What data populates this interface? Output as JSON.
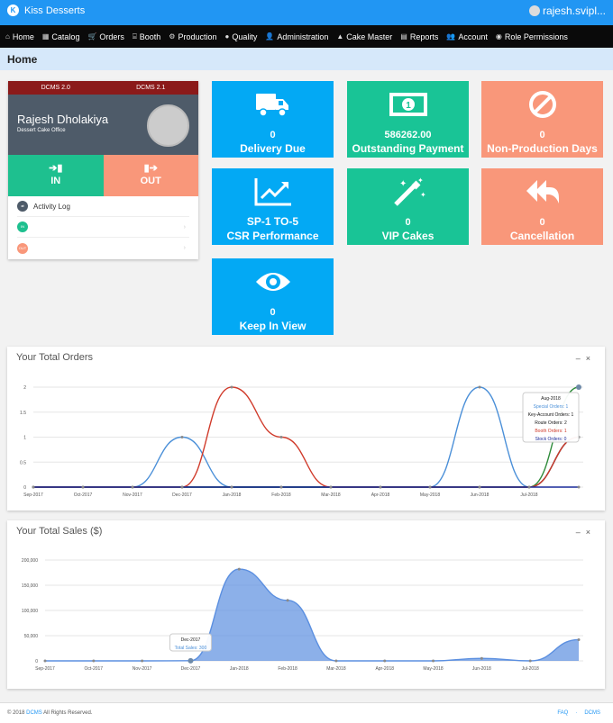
{
  "app": {
    "name": "Kiss Desserts",
    "user": "rajesh.svipl..."
  },
  "nav": [
    {
      "icon": "home-icon",
      "glyph": "⌂",
      "label": "Home"
    },
    {
      "icon": "catalog-icon",
      "glyph": "▦",
      "label": "Catalog"
    },
    {
      "icon": "orders-icon",
      "glyph": "🛒",
      "label": "Orders"
    },
    {
      "icon": "booth-icon",
      "glyph": "⌸",
      "label": "Booth"
    },
    {
      "icon": "production-icon",
      "glyph": "⚙",
      "label": "Production"
    },
    {
      "icon": "quality-icon",
      "glyph": "●",
      "label": "Quality"
    },
    {
      "icon": "administration-icon",
      "glyph": "👤",
      "label": "Administration"
    },
    {
      "icon": "cake-master-icon",
      "glyph": "▲",
      "label": "Cake Master"
    },
    {
      "icon": "reports-icon",
      "glyph": "▤",
      "label": "Reports"
    },
    {
      "icon": "account-icon",
      "glyph": "👥",
      "label": "Account"
    },
    {
      "icon": "role-permissions-icon",
      "glyph": "◉",
      "label": "Role Permissions"
    }
  ],
  "page": {
    "title": "Home"
  },
  "profile": {
    "tabs": [
      "DCMS 2.0",
      "DCMS 2.1"
    ],
    "name": "Rajesh Dholakiya",
    "office": "Dessert Cake Office",
    "in_label": "IN",
    "out_label": "OUT",
    "activity_log": "Activity Log",
    "rows": [
      {
        "badge": "IN",
        "color": "green"
      },
      {
        "badge": "OUT",
        "color": "salmon"
      }
    ]
  },
  "tiles": [
    {
      "id": "delivery-due",
      "icon": "truck-icon",
      "value": "0",
      "label": "Delivery Due",
      "color": "#03a9f4"
    },
    {
      "id": "outstanding-payment",
      "icon": "money-icon",
      "value": "586262.00",
      "label": "Outstanding Payment",
      "color": "#19c496"
    },
    {
      "id": "non-production-days",
      "icon": "ban-icon",
      "value": "0",
      "label": "Non-Production Days",
      "color": "#f9977a"
    },
    {
      "id": "csr-performance",
      "icon": "chart-line-icon",
      "value": "SP-1 TO-5",
      "label": "CSR Performance",
      "color": "#03a9f4"
    },
    {
      "id": "vip-cakes",
      "icon": "magic-wand-icon",
      "value": "0",
      "label": "VIP Cakes",
      "color": "#19c496"
    },
    {
      "id": "cancellation",
      "icon": "reply-all-icon",
      "value": "0",
      "label": "Cancellation",
      "color": "#f9977a"
    },
    {
      "id": "keep-in-view",
      "icon": "eye-icon",
      "value": "0",
      "label": "Keep In View",
      "color": "#03a9f4"
    }
  ],
  "panels": {
    "orders_title": "Your Total Orders",
    "sales_title": "Your Total Sales ($)",
    "minimize": "–",
    "close": "×"
  },
  "chart_data": [
    {
      "type": "line",
      "title": "Your Total Orders",
      "x": [
        "Sep-2017",
        "Oct-2017",
        "Nov-2017",
        "Dec-2017",
        "Jan-2018",
        "Feb-2018",
        "Mar-2018",
        "Apr-2018",
        "May-2018",
        "Jun-2018",
        "Jul-2018",
        "Aug-2018"
      ],
      "ylim": [
        0,
        2
      ],
      "yticks": [
        "0",
        "0.5",
        "1",
        "1.5",
        "2"
      ],
      "series": [
        {
          "name": "Special Orders",
          "color": "#4a8fd8",
          "values": [
            0,
            0,
            0,
            1,
            0,
            0,
            0,
            0,
            0,
            2,
            0,
            1
          ]
        },
        {
          "name": "Key-Account Orders",
          "color": "#111111",
          "values": [
            0,
            0,
            0,
            0,
            0,
            0,
            0,
            0,
            0,
            0,
            0,
            1
          ]
        },
        {
          "name": "Route Orders",
          "color": "#2e8b3a",
          "values": [
            0,
            0,
            0,
            0,
            0,
            0,
            0,
            0,
            0,
            0,
            0,
            2
          ]
        },
        {
          "name": "Booth Orders",
          "color": "#d03a2a",
          "values": [
            0,
            0,
            0,
            0,
            2,
            1,
            0,
            0,
            0,
            0,
            0,
            1
          ]
        },
        {
          "name": "Stock Orders",
          "color": "#1a2a9a",
          "values": [
            0,
            0,
            0,
            0,
            0,
            0,
            0,
            0,
            0,
            0,
            0,
            0
          ]
        }
      ],
      "tooltip": {
        "title": "Aug-2018",
        "lines": [
          {
            "text": "Special Orders: 1",
            "color": "#4a8fd8"
          },
          {
            "text": "Key-Account Orders: 1",
            "color": "#111111"
          },
          {
            "text": "Route Orders: 2",
            "color": "#111111"
          },
          {
            "text": "Booth Orders: 1",
            "color": "#d03a2a"
          },
          {
            "text": "Stock Orders: 0",
            "color": "#1a2a9a"
          }
        ]
      }
    },
    {
      "type": "area",
      "title": "Your Total Sales ($)",
      "x": [
        "Sep-2017",
        "Oct-2017",
        "Nov-2017",
        "Dec-2017",
        "Jan-2018",
        "Feb-2018",
        "Mar-2018",
        "Apr-2018",
        "May-2018",
        "Jun-2018",
        "Jul-2018",
        "Aug-2018"
      ],
      "ylim": [
        0,
        200000
      ],
      "yticks": [
        "0",
        "50,000",
        "100,000",
        "150,000",
        "200,000"
      ],
      "series": [
        {
          "name": "Total Sales",
          "color": "#5b8fe0",
          "values": [
            0,
            0,
            0,
            300,
            182000,
            120000,
            0,
            0,
            0,
            5000,
            0,
            42000
          ]
        }
      ],
      "tooltip": {
        "title": "Dec-2017",
        "lines": [
          {
            "text": "Total Sales: 300",
            "color": "#4a8fd8"
          }
        ]
      }
    }
  ],
  "footer": {
    "copyright": "© 2018",
    "brand": "DCMS",
    "rights": "All Rights Reserved.",
    "faq": "FAQ",
    "sep": "·",
    "dcms": "DCMS"
  }
}
